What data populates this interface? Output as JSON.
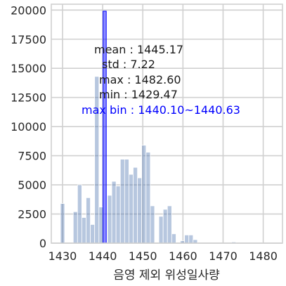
{
  "chart_data": {
    "type": "bar",
    "xlabel": "음영 제외 위성일사량",
    "ylabel": "",
    "xlim": [
      1427.2,
      1484.8
    ],
    "ylim": [
      0,
      20500
    ],
    "xticks": [
      1430,
      1440,
      1450,
      1460,
      1470,
      1480
    ],
    "yticks": [
      0,
      2500,
      5000,
      7500,
      10000,
      12500,
      15000,
      17500,
      20000
    ],
    "grid": true,
    "bin_edges": [
      1429.47,
      1430.53,
      1431.6,
      1432.67,
      1433.73,
      1434.8,
      1435.87,
      1436.93,
      1438.0,
      1439.07,
      1440.13,
      1441.2,
      1442.27,
      1443.33,
      1444.4,
      1445.47,
      1446.53,
      1447.6,
      1448.67,
      1449.73,
      1450.8,
      1451.87,
      1452.93,
      1454.0,
      1455.07,
      1456.13,
      1457.2,
      1458.27,
      1459.33,
      1460.4,
      1461.47,
      1462.53,
      1463.6,
      1464.67,
      1465.73,
      1466.8,
      1467.87,
      1468.93,
      1470.0,
      1471.07,
      1472.13,
      1473.2,
      1474.27,
      1475.33,
      1476.4,
      1477.47,
      1478.53,
      1479.6,
      1480.67,
      1481.73,
      1482.8
    ],
    "values": [
      3400,
      0,
      0,
      2700,
      5000,
      2200,
      3900,
      1600,
      14300,
      3100,
      0,
      4100,
      5300,
      4900,
      7200,
      7200,
      5900,
      6500,
      5600,
      8400,
      7800,
      3200,
      0,
      2300,
      2900,
      3200,
      800,
      0,
      200,
      700,
      700,
      300,
      0,
      0,
      0,
      0,
      0,
      0,
      0,
      0,
      100,
      0,
      0,
      0,
      0,
      0,
      0,
      0,
      0,
      0
    ],
    "highlight_bin": {
      "x0": 1440.1,
      "x1": 1440.63,
      "value": 19900,
      "color": "#0000ff"
    },
    "bar_color": "#4c72b0",
    "annotations": [
      {
        "label": "mean : 1445.17",
        "color": "#000000"
      },
      {
        "label": "std : 7.22",
        "color": "#000000"
      },
      {
        "label": "max : 1482.60",
        "color": "#000000"
      },
      {
        "label": "min : 1429.47",
        "color": "#000000"
      },
      {
        "label": "max bin : 1440.10~1440.63",
        "color": "#0000ff"
      }
    ]
  }
}
